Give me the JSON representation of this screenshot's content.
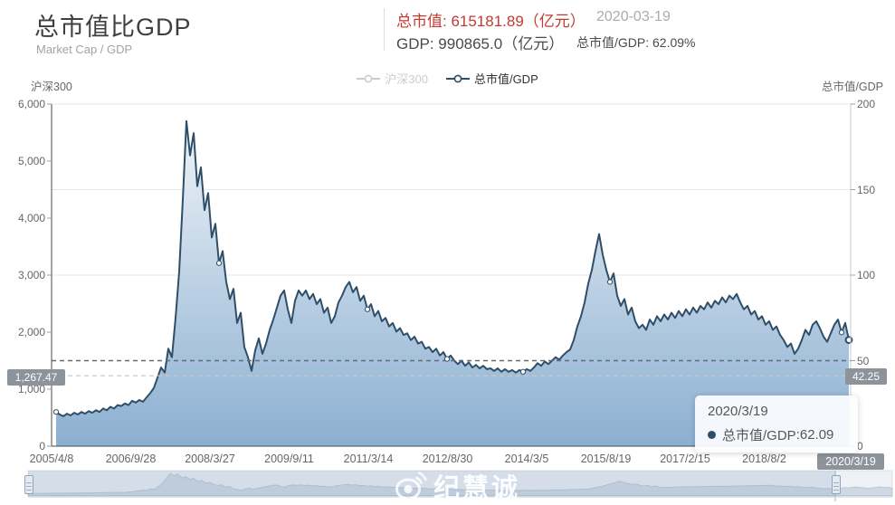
{
  "header": {
    "title": "总市值比GDP",
    "subtitle": "Market Cap / GDP",
    "stat_market_cap": "总市值: 615181.89（亿元）",
    "date": "2020-03-19",
    "stat_gdp": "GDP: 990865.0（亿元）",
    "stat_ratio": "总市值/GDP: 62.09%"
  },
  "legend": {
    "items": [
      {
        "label": "沪深300",
        "active": false
      },
      {
        "label": "总市值/GDP",
        "active": true
      }
    ]
  },
  "axes": {
    "left_name": "沪深300",
    "right_name": "总市值/GDP",
    "left_ticks": [
      "0",
      "1,000",
      "2,000",
      "3,000",
      "4,000",
      "5,000",
      "6,000"
    ],
    "left_tick_values": [
      0,
      1000,
      2000,
      3000,
      4000,
      5000,
      6000
    ],
    "left_max": 6000,
    "right_ticks": [
      "0",
      "50",
      "100",
      "150",
      "200"
    ],
    "right_tick_values": [
      0,
      50,
      100,
      150,
      200
    ],
    "right_max": 200,
    "x_labels": [
      "2005/4/8",
      "2006/9/28",
      "2008/3/27",
      "2009/9/11",
      "2011/3/14",
      "2012/8/30",
      "2014/3/5",
      "2015/8/19",
      "2017/2/15",
      "2018/8/2"
    ],
    "x_pointer_label": "2020/3/19"
  },
  "markers": {
    "left_badge": "1,267.47",
    "right_badge": "42.25"
  },
  "tooltip": {
    "date": "2020/3/19",
    "series": "总市值/GDP",
    "separator": " : ",
    "value": "62.09"
  },
  "watermark": {
    "text": "纪慧诚"
  },
  "colors": {
    "line": "#2f4e68",
    "area_top": "#eef3f8",
    "area_bottom": "#85abce",
    "red": "#c43a2f",
    "badge_bg": "#8d939a",
    "inactive": "#c9cdd3",
    "active_label": "#333333",
    "grid": "#e4e6e9",
    "dashed_dark": "#5f6e7a",
    "dashed_light": "#c6c8ca",
    "mini_fill": "#cfd9e3",
    "mini_line": "#b9c6d3"
  },
  "chart_data": {
    "type": "area",
    "title": "总市值比GDP",
    "x_start": "2005/4/8",
    "x_end": "2020/3/19",
    "xlabel": "",
    "ylabel_left": "沪深300",
    "ylabel_right": "总市值/GDP",
    "ylim_left": [
      0,
      6000
    ],
    "ylim_right": [
      0,
      200
    ],
    "grid": true,
    "legend_position": "top-center",
    "series": [
      {
        "name": "总市值/GDP",
        "axis": "right",
        "last_value": 62.09,
        "values": [
          20,
          18.5,
          17.5,
          19,
          18,
          19.5,
          18.5,
          20,
          19,
          20.5,
          19.5,
          21,
          20,
          22,
          21,
          23,
          22,
          24,
          23.5,
          25,
          24,
          26.5,
          25.5,
          27,
          26,
          28.5,
          31,
          34,
          40,
          46,
          43,
          57,
          52,
          75,
          102,
          144,
          190,
          170,
          183,
          152,
          163,
          138,
          148,
          122,
          130,
          107,
          114,
          96,
          86,
          92,
          72,
          78,
          58,
          52,
          44,
          56,
          63,
          54,
          60,
          68,
          74,
          81,
          88,
          91,
          80,
          72,
          85,
          91,
          88,
          91,
          86,
          89,
          83,
          86,
          78,
          81,
          72,
          76,
          84,
          88,
          93,
          96,
          90,
          93,
          85,
          88,
          80,
          83,
          76,
          79,
          73,
          75,
          70,
          72,
          67,
          69,
          65,
          66,
          62,
          64,
          60,
          61,
          57,
          58,
          55,
          57,
          53,
          55,
          51,
          53,
          50,
          48,
          50,
          47,
          49,
          46,
          47.5,
          45.5,
          47,
          45,
          45.5,
          44,
          45.5,
          43.5,
          45,
          43.5,
          44.5,
          43,
          44.5,
          43.5,
          45,
          44,
          46,
          48.5,
          47,
          49.5,
          48,
          50,
          52,
          50.5,
          53,
          55,
          56.5,
          62,
          70,
          76,
          84,
          95,
          103,
          114,
          124,
          112,
          103,
          96,
          101,
          88,
          82,
          86,
          77,
          81,
          73,
          69,
          71,
          68,
          74,
          71,
          76,
          73,
          77,
          74,
          78,
          75,
          79,
          76,
          80,
          77,
          81,
          78,
          82,
          80,
          84,
          81,
          85,
          83,
          87,
          84,
          88,
          86,
          89,
          84,
          80,
          82,
          77,
          79,
          74,
          76,
          71,
          73,
          68,
          70,
          65,
          62,
          58,
          60,
          54,
          57,
          62,
          68,
          65,
          71,
          73,
          69,
          64,
          61,
          66,
          71,
          74,
          66.5,
          72,
          62.09
        ],
        "dot_indices": [
          0,
          45,
          86,
          108,
          129,
          153,
          217
        ],
        "end_dot_index": 219
      }
    ],
    "marklines": [
      {
        "value_right": 50,
        "style": "dark-dashed"
      },
      {
        "value_right": 42.25,
        "value_left": 1267.47,
        "style": "light-dashed",
        "label_left": "1,267.47",
        "label_right": "42.25"
      }
    ]
  }
}
